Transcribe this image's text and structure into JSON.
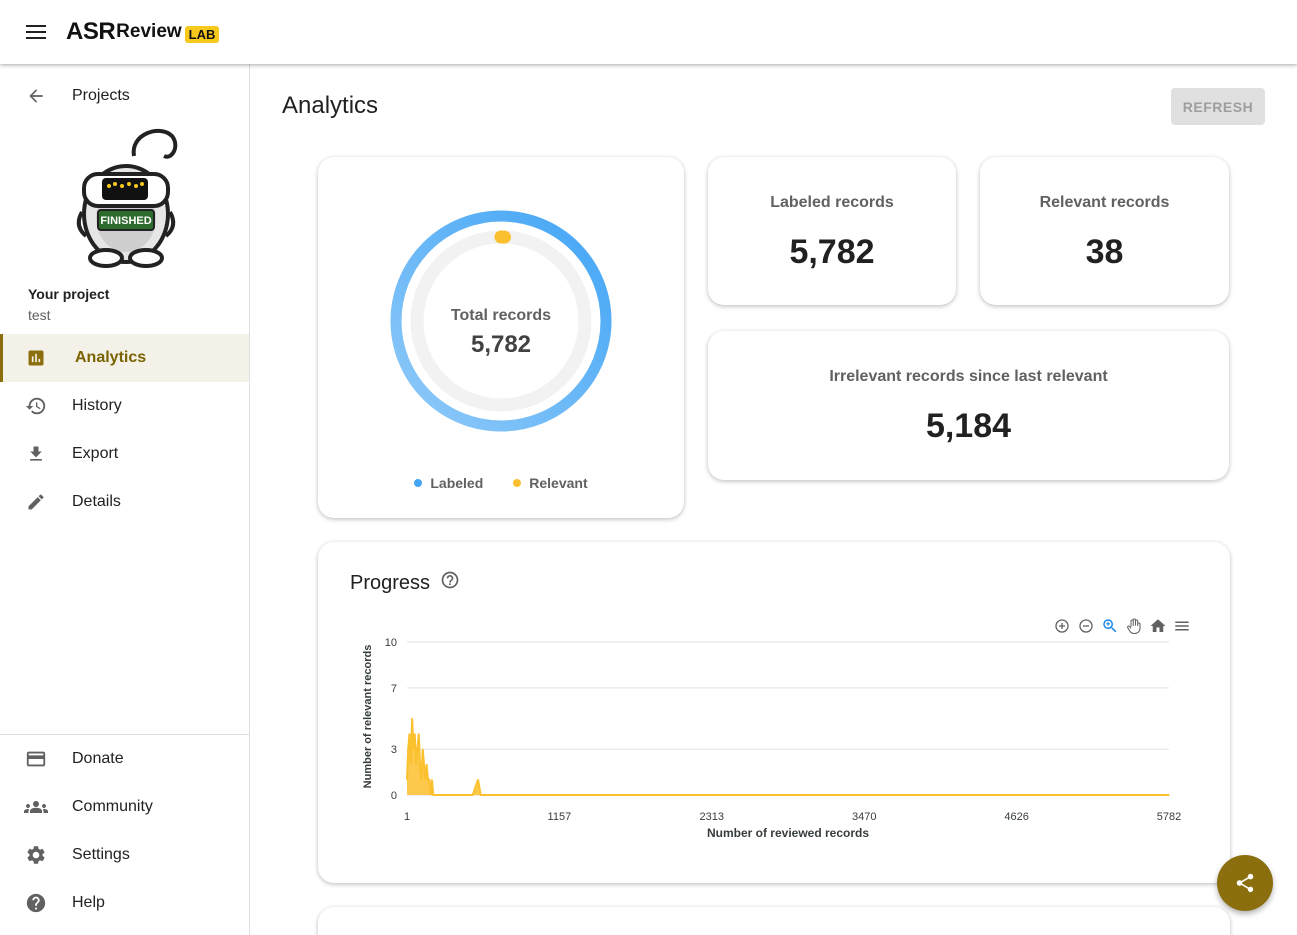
{
  "appbar": {
    "logo_main": "ASR",
    "logo_sub": "eview",
    "logo_badge": "LAB"
  },
  "sidebar": {
    "back_label": "Projects",
    "project_status": "FINISHED",
    "project_heading": "Your project",
    "project_name": "test",
    "items": [
      {
        "label": "Analytics",
        "icon": "bar-chart-icon",
        "active": true
      },
      {
        "label": "History",
        "icon": "history-icon",
        "active": false
      },
      {
        "label": "Export",
        "icon": "download-icon",
        "active": false
      },
      {
        "label": "Details",
        "icon": "edit-icon",
        "active": false
      }
    ],
    "footer": [
      {
        "label": "Donate",
        "icon": "credit-card-icon"
      },
      {
        "label": "Community",
        "icon": "groups-icon"
      },
      {
        "label": "Settings",
        "icon": "gear-icon"
      },
      {
        "label": "Help",
        "icon": "help-icon"
      }
    ]
  },
  "main": {
    "title": "Analytics",
    "refresh_label": "REFRESH",
    "donut": {
      "center_label": "Total records",
      "center_value": "5,782",
      "legend": [
        {
          "label": "Labeled",
          "color": "#42a5f5"
        },
        {
          "label": "Relevant",
          "color": "#fbc02d"
        }
      ]
    },
    "stats": {
      "labeled_title": "Labeled records",
      "labeled_value": "5,782",
      "relevant_title": "Relevant records",
      "relevant_value": "38",
      "irrelevant_title": "Irrelevant records since last relevant",
      "irrelevant_value": "5,184"
    },
    "progress": {
      "title": "Progress"
    }
  },
  "colors": {
    "accent": "#8b6f0f",
    "labeled": "#42a5f5",
    "relevant": "#fbc02d"
  },
  "chart_data": [
    {
      "type": "pie",
      "title": "Total records",
      "categories": [
        "Labeled",
        "Relevant"
      ],
      "values": [
        5782,
        38
      ],
      "total": 5782
    },
    {
      "type": "area",
      "title": "Progress",
      "xlabel": "Number of reviewed records",
      "ylabel": "Number of relevant records",
      "xticks": [
        "1",
        "1157",
        "2313",
        "3470",
        "4626",
        "5782"
      ],
      "yticks": [
        "0",
        "3",
        "7",
        "10"
      ],
      "xlim": [
        1,
        5782
      ],
      "ylim": [
        0,
        10
      ],
      "series": [
        {
          "color": "#fbc02d",
          "x": [
            1,
            10,
            20,
            30,
            40,
            50,
            60,
            70,
            80,
            90,
            100,
            110,
            120,
            130,
            140,
            150,
            160,
            170,
            180,
            190,
            200,
            300,
            400,
            500,
            540,
            560,
            580,
            600,
            800,
            1200,
            2000,
            3000,
            4000,
            5000,
            5782
          ],
          "y": [
            1,
            3,
            4,
            2,
            5,
            3,
            4,
            2,
            3,
            4,
            2,
            1,
            3,
            2,
            1,
            2,
            1,
            1,
            0,
            1,
            0,
            0,
            0,
            0,
            1,
            0,
            0,
            0,
            0,
            0,
            0,
            0,
            0,
            0,
            0
          ]
        }
      ]
    }
  ]
}
